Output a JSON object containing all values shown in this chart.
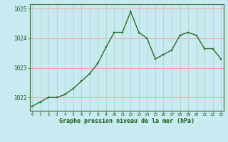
{
  "x": [
    0,
    1,
    2,
    3,
    4,
    5,
    6,
    7,
    8,
    9,
    10,
    11,
    12,
    13,
    14,
    15,
    16,
    17,
    18,
    19,
    20,
    21,
    22,
    23
  ],
  "y": [
    1021.7,
    1021.85,
    1022.0,
    1022.0,
    1022.1,
    1022.3,
    1022.55,
    1022.8,
    1023.15,
    1023.7,
    1024.2,
    1024.2,
    1024.9,
    1024.2,
    1024.0,
    1023.3,
    1023.45,
    1023.6,
    1024.1,
    1024.2,
    1024.1,
    1023.65,
    1023.65,
    1023.3
  ],
  "bg_color": "#c8eaf0",
  "line_color": "#2a6e2a",
  "marker_color": "#2a6e2a",
  "grid_color_h": "#ff9999",
  "grid_color_v": "#b0d4c8",
  "axis_bg": "#c8eaf0",
  "xlabel": "Graphe pression niveau de la mer (hPa)",
  "ylabel_ticks": [
    1022,
    1023,
    1024,
    1025
  ],
  "xlim": [
    -0.3,
    23.3
  ],
  "ylim": [
    1021.55,
    1025.15
  ],
  "xlabel_color": "#1a5c1a",
  "tick_color": "#1a5c1a",
  "spine_color": "#336633"
}
